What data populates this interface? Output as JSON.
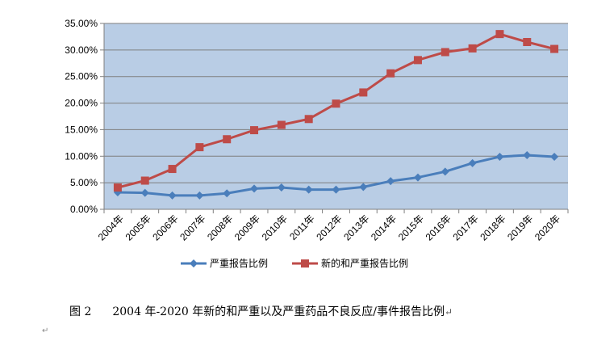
{
  "chart_data": {
    "type": "line",
    "categories": [
      "2004年",
      "2005年",
      "2006年",
      "2007年",
      "2008年",
      "2009年",
      "2010年",
      "2011年",
      "2012年",
      "2013年",
      "2014年",
      "2015年",
      "2016年",
      "2017年",
      "2018年",
      "2019年",
      "2020年"
    ],
    "series": [
      {
        "name": "严重报告比例",
        "color": "#4A7EBB",
        "marker": "diamond",
        "values": [
          3.2,
          3.1,
          2.6,
          2.6,
          3.0,
          3.9,
          4.1,
          3.7,
          3.7,
          4.2,
          5.3,
          6.0,
          7.1,
          8.7,
          9.9,
          10.2,
          9.9
        ]
      },
      {
        "name": "新的和严重报告比例",
        "color": "#BE4B48",
        "marker": "square",
        "values": [
          4.1,
          5.4,
          7.6,
          11.7,
          13.2,
          14.9,
          15.9,
          17.0,
          19.9,
          22.0,
          25.6,
          28.1,
          29.6,
          30.3,
          33.0,
          31.5,
          30.2
        ]
      }
    ],
    "y_ticks": [
      "0.00%",
      "5.00%",
      "10.00%",
      "15.00%",
      "20.00%",
      "25.00%",
      "30.00%",
      "35.00%"
    ],
    "ylim": [
      0,
      35
    ],
    "y_unit": "percent",
    "grid": true,
    "plot_background": "#B9CDE5",
    "legend_position": "bottom",
    "title": "",
    "xlabel": "",
    "ylabel": ""
  },
  "caption": {
    "figure_label": "图 2",
    "text": "2004 年-2020 年新的和严重以及严重药品不良反应/事件报告比例",
    "return_mark": "↵"
  },
  "bottom_mark": "↵"
}
